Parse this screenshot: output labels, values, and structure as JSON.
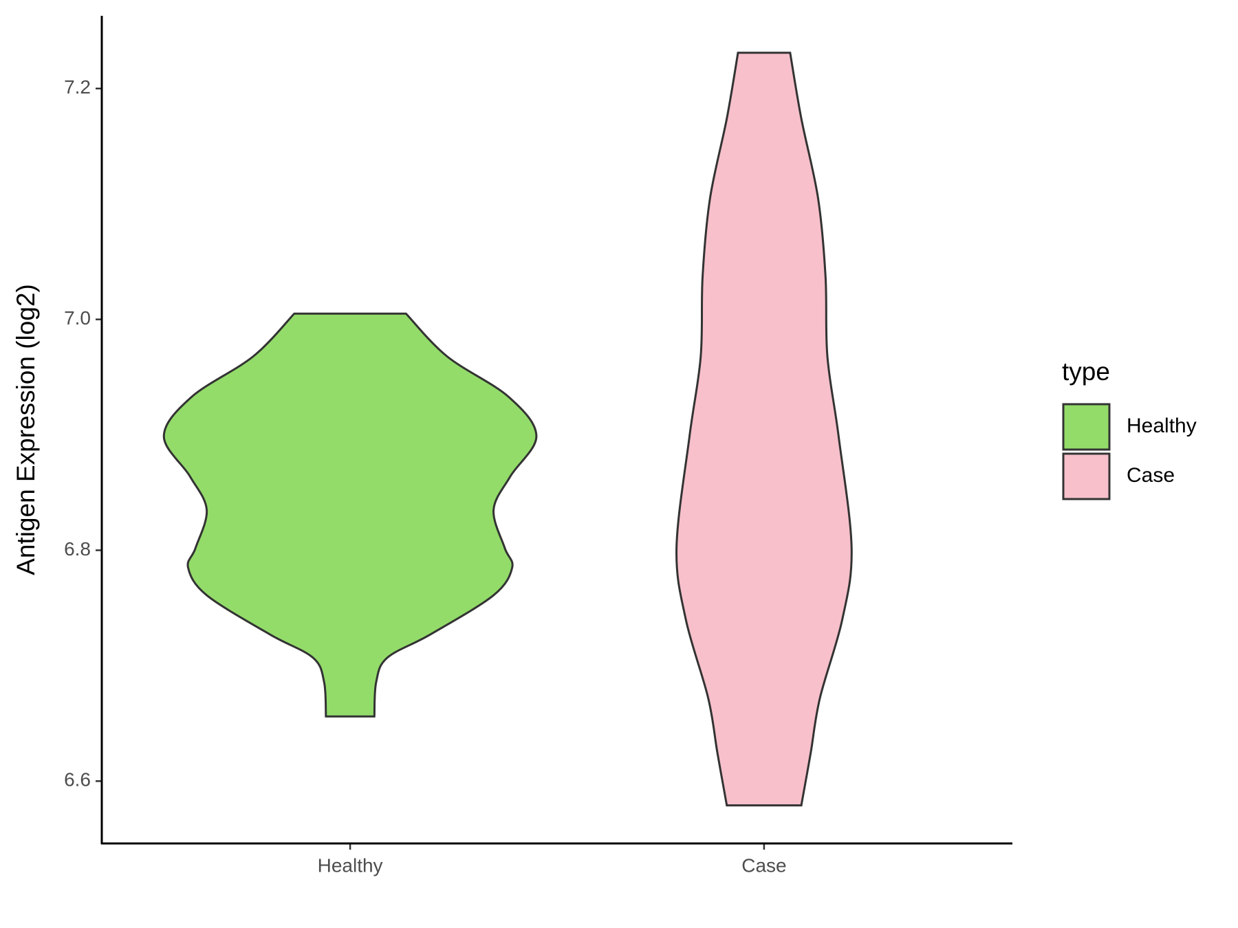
{
  "chart_data": {
    "type": "violin",
    "y_label": "Antigen Expression (log2)",
    "categories": [
      "Healthy",
      "Case"
    ],
    "legend_title": "type",
    "ylim": [
      6.546,
      7.263
    ],
    "yticks": [
      {
        "value": 6.6,
        "label": "6.6"
      },
      {
        "value": 6.8,
        "label": "6.8"
      },
      {
        "value": 7.0,
        "label": "7.0"
      },
      {
        "value": 7.2,
        "label": "7.2"
      }
    ],
    "legend_position": "right",
    "series": [
      {
        "name": "Healthy",
        "color": "#93dc6a",
        "y": [
          7.005,
          6.968,
          6.933,
          6.899,
          6.864,
          6.835,
          6.802,
          6.785,
          6.761,
          6.727,
          6.707,
          6.686,
          6.656
        ],
        "width": [
          0.3,
          0.52,
          0.85,
          1.0,
          0.86,
          0.77,
          0.83,
          0.87,
          0.77,
          0.43,
          0.2,
          0.14,
          0.13
        ]
      },
      {
        "name": "Case",
        "color": "#f7c0cb",
        "y": [
          7.231,
          7.174,
          7.105,
          7.037,
          6.968,
          6.899,
          6.802,
          6.74,
          6.672,
          6.624,
          6.579
        ],
        "width": [
          0.14,
          0.2,
          0.29,
          0.33,
          0.34,
          0.4,
          0.47,
          0.42,
          0.3,
          0.25,
          0.2
        ]
      }
    ]
  }
}
